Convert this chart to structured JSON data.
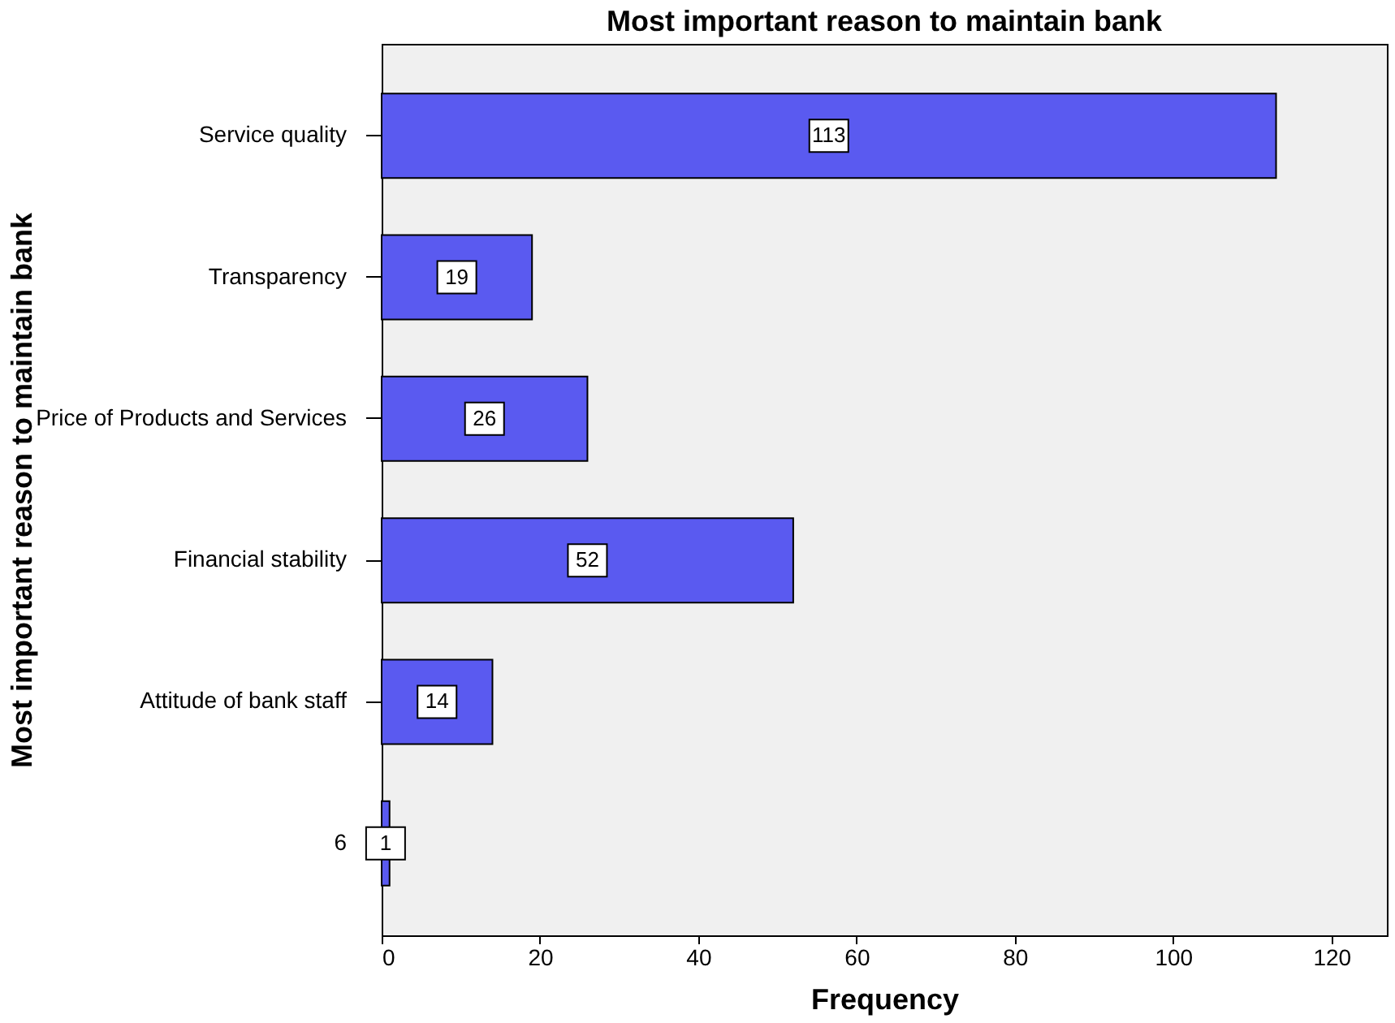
{
  "chart_data": {
    "type": "bar",
    "orientation": "horizontal",
    "title": "Most important reason to maintain bank",
    "xlabel": "Frequency",
    "ylabel": "Most important reason to maintain bank",
    "categories": [
      "Service quality",
      "Transparency",
      "Price of Products and Services",
      "Financial stability",
      "Attitude of bank staff",
      "6"
    ],
    "values": [
      113,
      19,
      26,
      52,
      14,
      1
    ],
    "color": "#5a5af0",
    "xlim": [
      0,
      127
    ],
    "xticks": [
      0,
      20,
      40,
      60,
      80,
      100,
      120
    ],
    "data_labels": true,
    "grid": false
  }
}
